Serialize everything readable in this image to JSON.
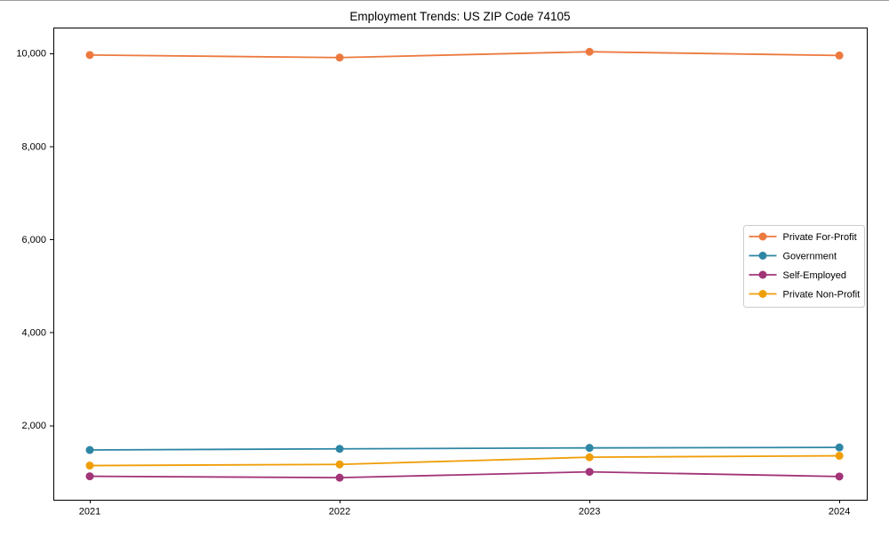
{
  "chart_data": {
    "type": "line",
    "title": "Employment Trends: US ZIP Code 74105",
    "categories": [
      "2021",
      "2022",
      "2023",
      "2024"
    ],
    "series": [
      {
        "name": "Private For-Profit",
        "color": "#ec7a3f",
        "values": [
          9960,
          9905,
          10030,
          9950
        ]
      },
      {
        "name": "Government",
        "color": "#2e86a5",
        "values": [
          1470,
          1495,
          1515,
          1525
        ]
      },
      {
        "name": "Self-Employed",
        "color": "#a23478",
        "values": [
          905,
          875,
          1000,
          900
        ]
      },
      {
        "name": "Private Non-Profit",
        "color": "#f09e08",
        "values": [
          1135,
          1160,
          1315,
          1345
        ]
      }
    ],
    "xlabel": "",
    "ylabel": "",
    "ylim": [
      400,
      10550
    ],
    "yticks": [
      {
        "value": 2000,
        "label": "2,000"
      },
      {
        "value": 4000,
        "label": "4,000"
      },
      {
        "value": 6000,
        "label": "6,000"
      },
      {
        "value": 8000,
        "label": "8,000"
      },
      {
        "value": 10000,
        "label": "10,000"
      }
    ],
    "grid": false,
    "marker": "circle",
    "legend": {
      "position": "center-right"
    },
    "axis_color": "#000000",
    "legend_border_color": "#cccccc",
    "background_color": "#ffffff"
  }
}
